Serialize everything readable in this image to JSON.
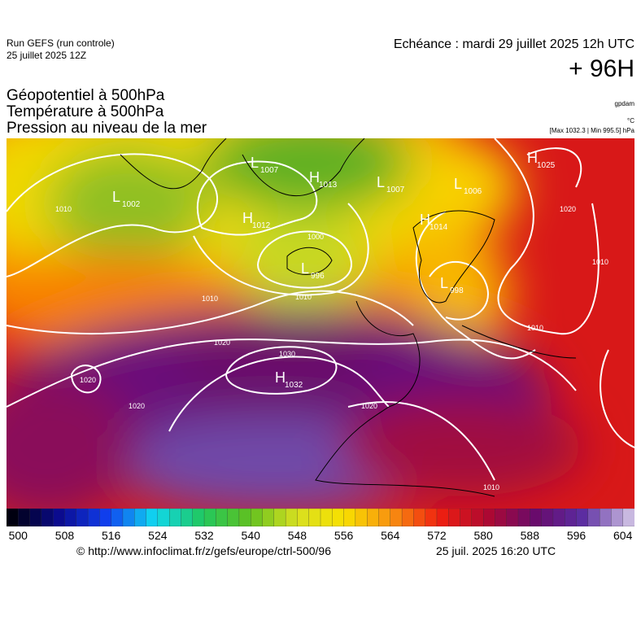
{
  "header": {
    "run": "Run GEFS (run controle)",
    "run_date": "25 juillet 2025 12Z",
    "valid": "Echéance : mardi 29 juillet 2025 12h UTC",
    "lead": "+ 96H"
  },
  "titles": [
    "Géopotentiel à 500hPa",
    "Température à 500hPa",
    "Pression au niveau de la mer"
  ],
  "units": {
    "geopotential": "gpdam",
    "temperature": "°C",
    "pressure": "[Max 1032.3 | Min 995.5] hPa"
  },
  "centers": [
    {
      "type": "L",
      "value": "1002"
    },
    {
      "type": "L",
      "value": "1007"
    },
    {
      "type": "H",
      "value": "1013"
    },
    {
      "type": "L",
      "value": "1007"
    },
    {
      "type": "L",
      "value": "1006"
    },
    {
      "type": "H",
      "value": "1025"
    },
    {
      "type": "H",
      "value": "1012"
    },
    {
      "type": "H",
      "value": "1014"
    },
    {
      "type": "L",
      "value": "996"
    },
    {
      "type": "L",
      "value": "998"
    },
    {
      "type": "H",
      "value": "1032"
    }
  ],
  "isobar_labels": [
    "1010",
    "1020",
    "1010",
    "1000",
    "1010",
    "1020",
    "1030",
    "1020",
    "1020",
    "1010",
    "1010",
    "1020",
    "1010"
  ],
  "colorbar": {
    "ticks": [
      500,
      508,
      516,
      524,
      532,
      540,
      548,
      556,
      564,
      572,
      580,
      588,
      596,
      604
    ],
    "min": 498,
    "max": 606,
    "anchors": [
      "#000010",
      "#0b0b90",
      "#1040f0",
      "#10d8f0",
      "#20c860",
      "#60c020",
      "#d8e020",
      "#f8e000",
      "#f89010",
      "#f02010",
      "#b00830",
      "#6a0a6a",
      "#5a2aa0",
      "#c8b8e0"
    ]
  },
  "footer": {
    "source": "© http://www.infoclimat.fr/z/gefs/europe/ctrl-500/96",
    "generated": "25 juil. 2025 16:20 UTC"
  }
}
